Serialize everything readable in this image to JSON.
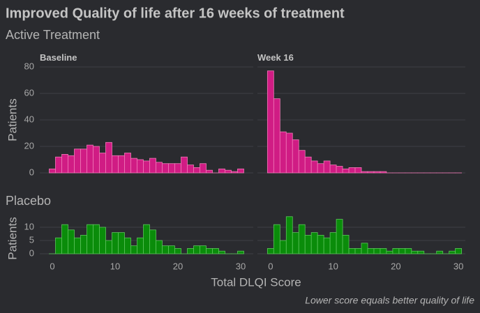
{
  "title": "Improved Quality of life after 16 weeks of treatment",
  "caption": "Lower score equals better quality of life",
  "x_label": "Total DLQI Score",
  "groups": [
    {
      "name": "Active Treatment",
      "y_label": "Patients"
    },
    {
      "name": "Placebo",
      "y_label": "Patients"
    }
  ],
  "chart_data": [
    {
      "type": "histogram",
      "facet": "Baseline",
      "color": "#d01c84",
      "bins": [
        -0.5,
        0.5,
        1.5,
        2.5,
        3.5,
        4.5,
        5.5,
        6.5,
        7.5,
        8.5,
        9.5,
        10.5,
        11.5,
        12.5,
        13.5,
        14.5,
        15.5,
        16.5,
        17.5,
        18.5,
        19.5,
        20.5,
        21.5,
        22.5,
        23.5,
        24.5,
        25.5,
        26.5,
        27.5,
        28.5,
        29.5,
        30.5
      ],
      "values": [
        3,
        12,
        14,
        13,
        18,
        18,
        21,
        20,
        15,
        23,
        13,
        13,
        15,
        11,
        10,
        9,
        11,
        8,
        7,
        7,
        7,
        12,
        6,
        4,
        7,
        2,
        0,
        3,
        2,
        1,
        3
      ],
      "xlim": [
        -2,
        32
      ],
      "ylim": [
        -4,
        84
      ],
      "yticks": [
        0,
        20,
        40,
        60,
        80
      ]
    },
    {
      "type": "histogram",
      "facet": "Week 16",
      "color": "#d01c84",
      "bins": [
        -0.5,
        0.5,
        1.5,
        2.5,
        3.5,
        4.5,
        5.5,
        6.5,
        7.5,
        8.5,
        9.5,
        10.5,
        11.5,
        12.5,
        13.5,
        14.5,
        15.5,
        16.5,
        17.5,
        18.5,
        19.5,
        20.5,
        21.5,
        22.5,
        23.5,
        24.5,
        25.5,
        26.5,
        27.5,
        28.5,
        29.5,
        30.5
      ],
      "values": [
        77,
        56,
        31,
        30,
        25,
        17,
        12,
        9,
        7,
        9,
        6,
        5,
        3,
        4,
        4,
        1,
        1,
        1,
        1,
        0,
        0,
        0,
        0,
        0,
        0,
        0,
        0,
        0,
        0,
        0,
        0
      ],
      "xlim": [
        -2.1,
        31.1
      ],
      "ylim": [
        -4,
        84
      ],
      "yticks": [
        0,
        20,
        40,
        60,
        80
      ]
    },
    {
      "type": "histogram",
      "color": "#0a8c0a",
      "bins": [
        -0.5,
        0.5,
        1.5,
        2.5,
        3.5,
        4.5,
        5.5,
        6.5,
        7.5,
        8.5,
        9.5,
        10.5,
        11.5,
        12.5,
        13.5,
        14.5,
        15.5,
        16.5,
        17.5,
        18.5,
        19.5,
        20.5,
        21.5,
        22.5,
        23.5,
        24.5,
        25.5,
        26.5,
        27.5,
        28.5,
        29.5,
        30.5
      ],
      "values": [
        0,
        6,
        11,
        9,
        6,
        7,
        11,
        11,
        10,
        5,
        8,
        8,
        6,
        3,
        6,
        11,
        9,
        5,
        3,
        3,
        2,
        0,
        2,
        3,
        3,
        2,
        2,
        1,
        0,
        0,
        1
      ],
      "xlim": [
        -2,
        32
      ],
      "ylim": [
        -0.6,
        12
      ],
      "yticks": [
        0,
        5,
        10
      ],
      "xticks": [
        0,
        10,
        20,
        30
      ]
    },
    {
      "type": "histogram",
      "color": "#0a8c0a",
      "bins": [
        -0.5,
        0.5,
        1.5,
        2.5,
        3.5,
        4.5,
        5.5,
        6.5,
        7.5,
        8.5,
        9.5,
        10.5,
        11.5,
        12.5,
        13.5,
        14.5,
        15.5,
        16.5,
        17.5,
        18.5,
        19.5,
        20.5,
        21.5,
        22.5,
        23.5,
        24.5,
        25.5,
        26.5,
        27.5,
        28.5,
        29.5,
        30.5
      ],
      "values": [
        2,
        11,
        5,
        14,
        8,
        11,
        7,
        8,
        7,
        6,
        8,
        13,
        7,
        2,
        2,
        4,
        2,
        2,
        2,
        1,
        2,
        2,
        2,
        1,
        1,
        0,
        0,
        1,
        0,
        1,
        2
      ],
      "xlim": [
        -2.1,
        31.1
      ],
      "ylim": [
        -0.6,
        12
      ],
      "yticks": [
        0,
        5,
        10
      ],
      "xticks": [
        0,
        10,
        20,
        30
      ]
    }
  ]
}
